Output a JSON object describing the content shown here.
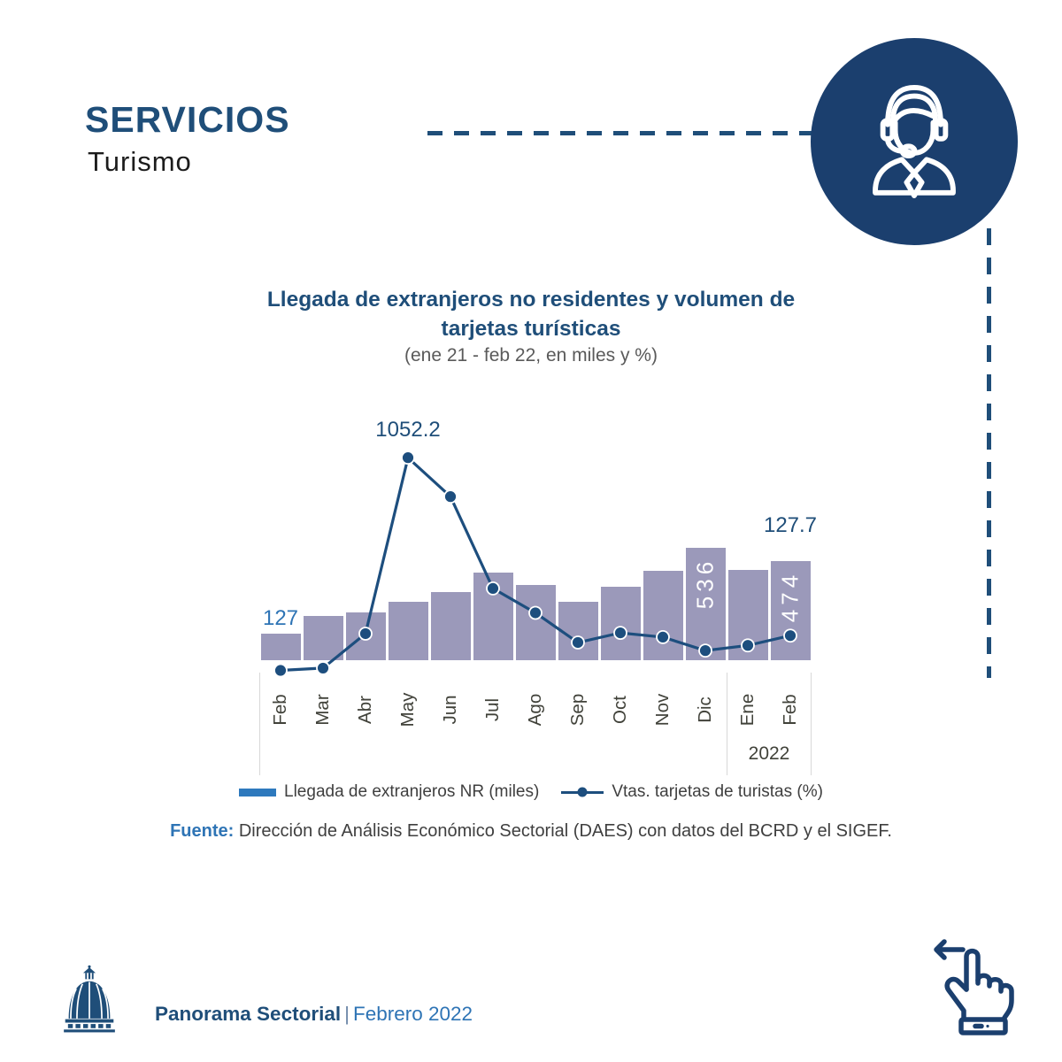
{
  "header": {
    "kicker": "SERVICIOS",
    "section": "Turismo"
  },
  "chart": {
    "title_line1": "Llegada de extranjeros no residentes y volumen de",
    "title_line2": "tarjetas turísticas",
    "subtitle": "(ene 21 - feb 22, en miles y %)"
  },
  "chart_data": {
    "type": "combo (bar + line, dual axis)",
    "categories": [
      "Feb",
      "Mar",
      "Abr",
      "May",
      "Jun",
      "Jul",
      "Ago",
      "Sep",
      "Oct",
      "Nov",
      "Dic",
      "Ene",
      "Feb"
    ],
    "year_label": "2022",
    "year_group_start_index": 11,
    "series": [
      {
        "name": "Llegada de extranjeros NR (miles)",
        "type": "bar",
        "values": [
          127,
          210,
          228,
          280,
          327,
          418,
          358,
          278,
          351,
          426,
          536,
          430,
          474
        ]
      },
      {
        "name": "Vtas. tarjetas de turistas (%)",
        "type": "line",
        "values": [
          -53,
          -41,
          138,
          1052.2,
          850,
          373,
          246,
          92,
          142,
          120,
          50,
          77,
          127.7
        ]
      }
    ],
    "bar_axis_max": 1230,
    "line_axis_max": 1338,
    "bar_inside_labels": [
      {
        "index": 10,
        "text": "536"
      },
      {
        "index": 12,
        "text": "474"
      }
    ],
    "callouts": [
      {
        "text": "127",
        "index": 0,
        "placement": "bar-top",
        "color": "#2E74B5"
      },
      {
        "text": "1052.2",
        "index": 3,
        "placement": "marker-top",
        "color": "#1F4E79"
      },
      {
        "text": "127.7",
        "index": 12,
        "placement": "bar-top-far",
        "color": "#1F4E79"
      }
    ],
    "grid": false,
    "legend_position": "bottom"
  },
  "source": {
    "label": "Fuente:",
    "text": " Dirección de Análisis Económico Sectorial (DAES) con datos del BCRD y el SIGEF."
  },
  "footer": {
    "brand": "Panorama Sectorial",
    "separator": "|",
    "edition": "Febrero 2022"
  },
  "colors": {
    "navy": "#1F4E79",
    "badge": "#1B3F6E",
    "accent": "#2E74B5",
    "barfill": "#9B99BA",
    "line": "#1D4E7E",
    "legendbar": "#2E79BD",
    "axistext": "#41423A",
    "body": "#3F3F3F"
  },
  "icons": {
    "badge": "headset-agent-icon",
    "footer_logo": "palace-dome-icon",
    "gesture": "swipe-left-hand-icon"
  }
}
